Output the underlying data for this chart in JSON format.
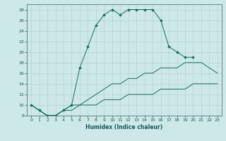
{
  "xlabel": "Humidex (Indice chaleur)",
  "background_color": "#cce8e8",
  "line_color": "#1a6b5a",
  "xlim": [
    -0.5,
    23.5
  ],
  "ylim": [
    8,
    29
  ],
  "xticks": [
    0,
    1,
    2,
    3,
    4,
    5,
    6,
    7,
    8,
    9,
    10,
    11,
    12,
    13,
    14,
    15,
    16,
    17,
    18,
    19,
    20,
    21,
    22,
    23
  ],
  "yticks": [
    8,
    10,
    12,
    14,
    16,
    18,
    20,
    22,
    24,
    26,
    28
  ],
  "series": [
    {
      "x": [
        0,
        1,
        2,
        3,
        4,
        5,
        6,
        7,
        8,
        9,
        10,
        11,
        12,
        13,
        14,
        15,
        16,
        17,
        18,
        19,
        20
      ],
      "y": [
        10,
        9,
        8,
        8,
        9,
        10,
        17,
        21,
        25,
        27,
        28,
        27,
        28,
        28,
        28,
        28,
        26,
        21,
        20,
        19,
        19
      ],
      "marker": "D",
      "markersize": 1.8
    },
    {
      "x": [
        0,
        1,
        2,
        3,
        4,
        5,
        6,
        7,
        8,
        9,
        10,
        11,
        12,
        13,
        14,
        15,
        16,
        17,
        18,
        19,
        20,
        21,
        22,
        23
      ],
      "y": [
        10,
        9,
        8,
        8,
        9,
        10,
        10,
        11,
        12,
        13,
        14,
        14,
        15,
        15,
        16,
        16,
        17,
        17,
        17,
        18,
        18,
        18,
        17,
        16
      ],
      "marker": null,
      "markersize": 1.5
    },
    {
      "x": [
        0,
        1,
        2,
        3,
        4,
        5,
        6,
        7,
        8,
        9,
        10,
        11,
        12,
        13,
        14,
        15,
        16,
        17,
        18,
        19,
        20,
        21,
        22,
        23
      ],
      "y": [
        10,
        9,
        8,
        8,
        9,
        9,
        10,
        10,
        10,
        11,
        11,
        11,
        12,
        12,
        12,
        12,
        13,
        13,
        13,
        13,
        14,
        14,
        14,
        14
      ],
      "marker": null,
      "markersize": 1.5
    }
  ]
}
